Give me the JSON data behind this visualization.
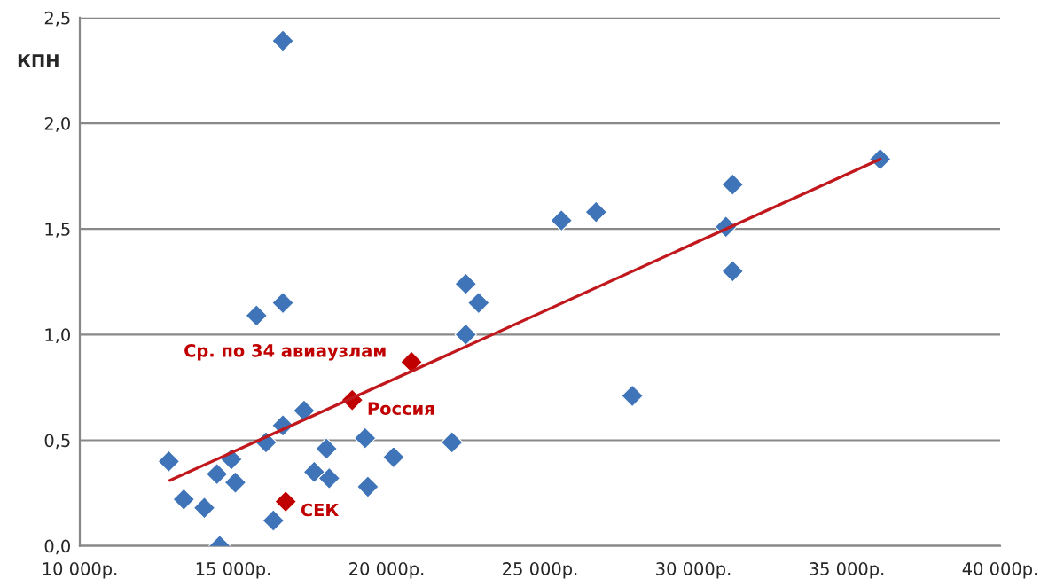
{
  "chart_data": {
    "type": "scatter",
    "ylabel": "КПН",
    "marker": "diamond",
    "grid": "y",
    "legend": false,
    "series": [
      {
        "color": "#3f75b8",
        "x": [
          12900,
          13390,
          14060,
          14470,
          14560,
          14940,
          15070,
          15760,
          16070,
          16310,
          16620,
          16620,
          16620,
          17310,
          17640,
          18040,
          18130,
          19300,
          19390,
          20230,
          22130,
          22580,
          22580,
          23000,
          25700,
          26830,
          28010,
          31060,
          31280,
          31280,
          36090
        ],
        "values": [
          0.4,
          0.22,
          0.18,
          0.34,
          0.0,
          0.41,
          0.3,
          1.09,
          0.49,
          0.12,
          2.39,
          1.15,
          0.57,
          0.64,
          0.35,
          0.46,
          0.32,
          0.51,
          0.28,
          0.42,
          0.49,
          1.24,
          1.0,
          1.15,
          1.54,
          1.58,
          0.71,
          1.51,
          1.71,
          1.3,
          1.83
        ]
      },
      {
        "color": "#c00000",
        "x": [
          18880,
          20810,
          16710
        ],
        "values": [
          0.69,
          0.87,
          0.21
        ]
      },
      {
        "type": "line",
        "color": "#c0181c",
        "marker": "none",
        "x": [
          12940,
          36090
        ],
        "values": [
          0.31,
          1.83
        ]
      }
    ],
    "annotations": [
      {
        "text": "Россия",
        "x": 18880,
        "y": 0.69
      },
      {
        "text": "Ср. по 34 авиаузлам",
        "x": 20810,
        "y": 0.87
      },
      {
        "text": "СЕК",
        "x": 16710,
        "y": 0.21
      }
    ],
    "xlim": [
      10000,
      40000
    ],
    "xticks": [
      {
        "value": 10000,
        "label": "10 000р."
      },
      {
        "value": 15000,
        "label": "15 000р."
      },
      {
        "value": 20000,
        "label": "20 000р."
      },
      {
        "value": 25000,
        "label": "25 000р."
      },
      {
        "value": 30000,
        "label": "30 000р."
      },
      {
        "value": 35000,
        "label": "35 000р."
      },
      {
        "value": 40000,
        "label": "40 000р."
      }
    ],
    "ylim": [
      0,
      2.5
    ],
    "yticks": [
      {
        "value": 0,
        "label": "0,0"
      },
      {
        "value": 0.5,
        "label": "0,5"
      },
      {
        "value": 1.0,
        "label": "1,0"
      },
      {
        "value": 1.5,
        "label": "1,5"
      },
      {
        "value": 2.0,
        "label": "2,0"
      },
      {
        "value": 2.5,
        "label": "2,5"
      }
    ]
  }
}
